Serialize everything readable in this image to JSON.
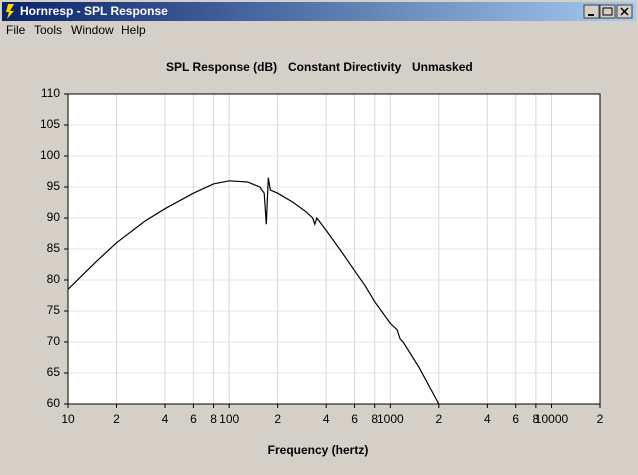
{
  "window": {
    "title": "Hornresp - SPL Response",
    "menu": [
      "File",
      "Tools",
      "Window",
      "Help"
    ]
  },
  "chart_data": {
    "type": "line",
    "title": "SPL Response (dB)",
    "annotations": [
      "Constant Directivity",
      "Unmasked"
    ],
    "x_label": "Frequency (hertz)",
    "log_x": true,
    "grid": true,
    "color": "#000000",
    "x": [
      10,
      15,
      20,
      30,
      40,
      60,
      80,
      100,
      130,
      155,
      165,
      170,
      175,
      180,
      200,
      250,
      300,
      330,
      340,
      350,
      400,
      500,
      600,
      700,
      800,
      1000,
      1100,
      1150,
      1200,
      1500,
      2000
    ],
    "values": [
      78.5,
      83,
      86,
      89.5,
      91.5,
      94,
      95.5,
      96,
      95.8,
      95,
      94,
      89,
      96.5,
      94.5,
      94,
      92.5,
      91,
      90,
      89,
      90,
      88,
      84.5,
      81.5,
      79,
      76.5,
      73,
      72,
      70.5,
      70,
      66,
      60
    ],
    "xlim": [
      10,
      20000
    ],
    "ylim": [
      60,
      110
    ],
    "xticks": [
      10,
      {
        "value": 20,
        "label": "2"
      },
      {
        "value": 40,
        "label": "4"
      },
      {
        "value": 60,
        "label": "6"
      },
      {
        "value": 80,
        "label": "8"
      },
      100,
      {
        "value": 200,
        "label": "2"
      },
      {
        "value": 400,
        "label": "4"
      },
      {
        "value": 600,
        "label": "6"
      },
      {
        "value": 800,
        "label": "8"
      },
      1000,
      {
        "value": 2000,
        "label": "2"
      },
      {
        "value": 4000,
        "label": "4"
      },
      {
        "value": 6000,
        "label": "6"
      },
      {
        "value": 8000,
        "label": "8"
      },
      10000,
      {
        "value": 20000,
        "label": "2"
      }
    ],
    "yticks": [
      60,
      65,
      70,
      75,
      80,
      85,
      90,
      95,
      100,
      105,
      110
    ]
  }
}
